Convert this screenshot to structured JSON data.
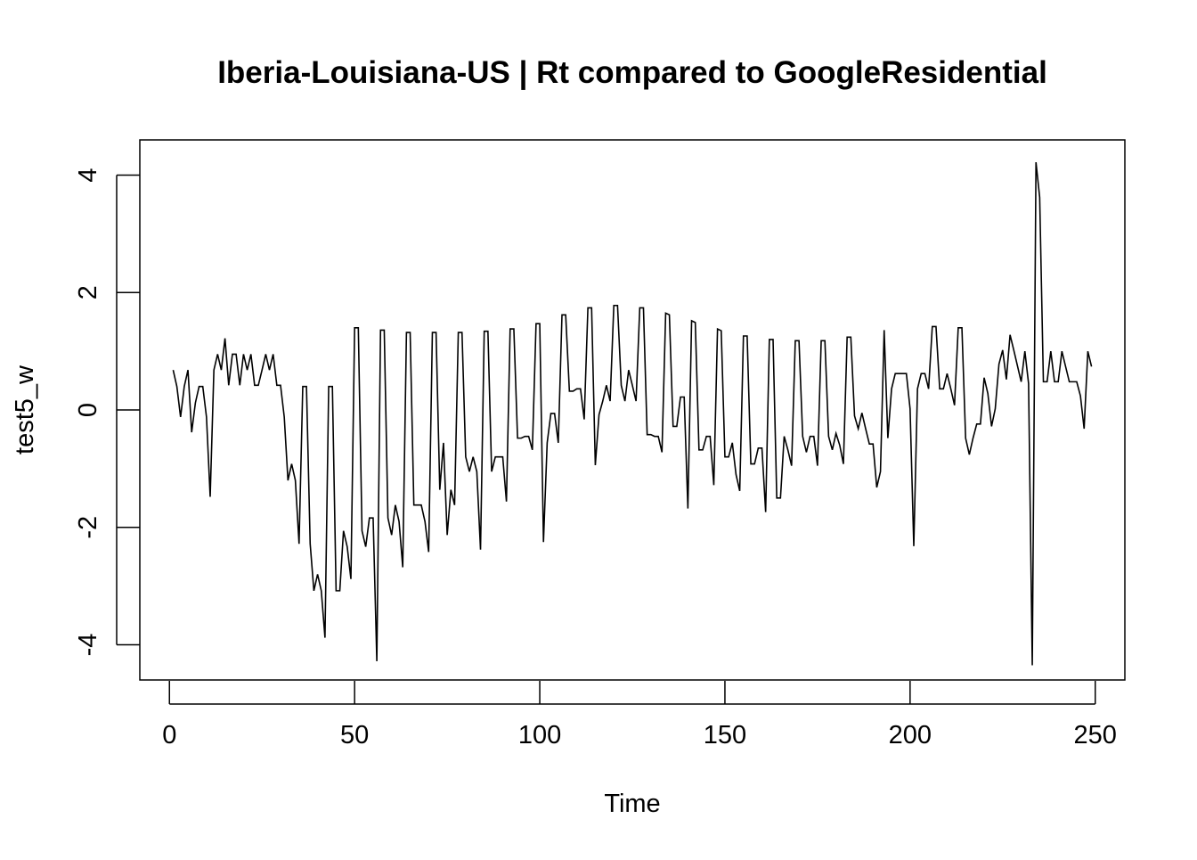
{
  "chart_data": {
    "type": "line",
    "title": "Iberia-Louisiana-US | Rt compared to GoogleResidential",
    "xlabel": "Time",
    "ylabel": "test5_w",
    "xlim": [
      -8,
      258
    ],
    "ylim": [
      -4.6,
      4.6
    ],
    "x_ticks": [
      0,
      50,
      100,
      150,
      200,
      250
    ],
    "y_ticks": [
      -4,
      -2,
      0,
      2,
      4
    ],
    "grid": false,
    "legend": "none",
    "line_color": "#000000",
    "series": [
      {
        "x_start": 1,
        "values": [
          0.68,
          0.4,
          -0.12,
          0.4,
          0.68,
          -0.38,
          0.12,
          0.4,
          0.4,
          -0.12,
          -1.48,
          0.68,
          0.95,
          0.68,
          1.22,
          0.42,
          0.95,
          0.95,
          0.42,
          0.95,
          0.68,
          0.95,
          0.42,
          0.42,
          0.68,
          0.95,
          0.68,
          0.95,
          0.42,
          0.42,
          -0.12,
          -1.2,
          -0.92,
          -1.2,
          -2.28,
          0.4,
          0.4,
          -2.28,
          -3.08,
          -2.8,
          -3.08,
          -3.88,
          0.4,
          0.4,
          -3.08,
          -3.08,
          -2.06,
          -2.33,
          -2.88,
          1.4,
          1.4,
          -2.06,
          -2.33,
          -1.84,
          -1.84,
          -4.28,
          1.36,
          1.36,
          -1.84,
          -2.13,
          -1.62,
          -1.9,
          -2.68,
          1.32,
          1.32,
          -1.62,
          -1.62,
          -1.62,
          -1.9,
          -2.42,
          1.32,
          1.32,
          -1.36,
          -0.56,
          -2.13,
          -1.36,
          -1.62,
          1.32,
          1.32,
          -0.8,
          -1.05,
          -0.8,
          -1.05,
          -2.38,
          1.34,
          1.34,
          -1.05,
          -0.8,
          -0.8,
          -0.8,
          -1.56,
          1.38,
          1.38,
          -0.48,
          -0.48,
          -0.45,
          -0.45,
          -0.68,
          1.47,
          1.47,
          -2.25,
          -0.56,
          -0.06,
          -0.06,
          -0.56,
          1.62,
          1.62,
          0.32,
          0.32,
          0.36,
          0.36,
          -0.16,
          1.74,
          1.74,
          -0.94,
          -0.08,
          0.15,
          0.42,
          0.15,
          1.78,
          1.78,
          0.42,
          0.15,
          0.68,
          0.42,
          0.15,
          1.74,
          1.74,
          -0.42,
          -0.42,
          -0.45,
          -0.45,
          -0.72,
          1.65,
          1.62,
          -0.28,
          -0.28,
          0.22,
          0.22,
          -1.68,
          1.52,
          1.49,
          -0.68,
          -0.68,
          -0.45,
          -0.45,
          -1.28,
          1.38,
          1.35,
          -0.8,
          -0.8,
          -0.56,
          -1.1,
          -1.38,
          1.26,
          1.26,
          -0.92,
          -0.92,
          -0.65,
          -0.65,
          -1.74,
          1.2,
          1.2,
          -1.5,
          -1.5,
          -0.45,
          -0.68,
          -0.95,
          1.18,
          1.18,
          -0.45,
          -0.72,
          -0.45,
          -0.45,
          -0.95,
          1.18,
          1.18,
          -0.45,
          -0.68,
          -0.4,
          -0.6,
          -0.92,
          1.24,
          1.24,
          -0.1,
          -0.32,
          -0.05,
          -0.32,
          -0.58,
          -0.58,
          -1.32,
          -1.05,
          1.36,
          -0.48,
          0.36,
          0.62,
          0.62,
          0.62,
          0.62,
          0.02,
          -2.32,
          0.36,
          0.62,
          0.62,
          0.36,
          1.42,
          1.42,
          0.36,
          0.36,
          0.62,
          0.36,
          0.08,
          1.4,
          1.4,
          -0.48,
          -0.76,
          -0.48,
          -0.24,
          -0.24,
          0.55,
          0.28,
          -0.28,
          0.02,
          0.78,
          1.02,
          0.52,
          1.28,
          1.02,
          0.75,
          0.48,
          1.0,
          0.45,
          -4.35,
          4.22,
          3.62,
          0.48,
          0.48,
          1.0,
          0.48,
          0.48,
          1.0,
          0.74,
          0.48,
          0.48,
          0.48,
          0.24,
          -0.32,
          1.0,
          0.74
        ]
      }
    ]
  }
}
